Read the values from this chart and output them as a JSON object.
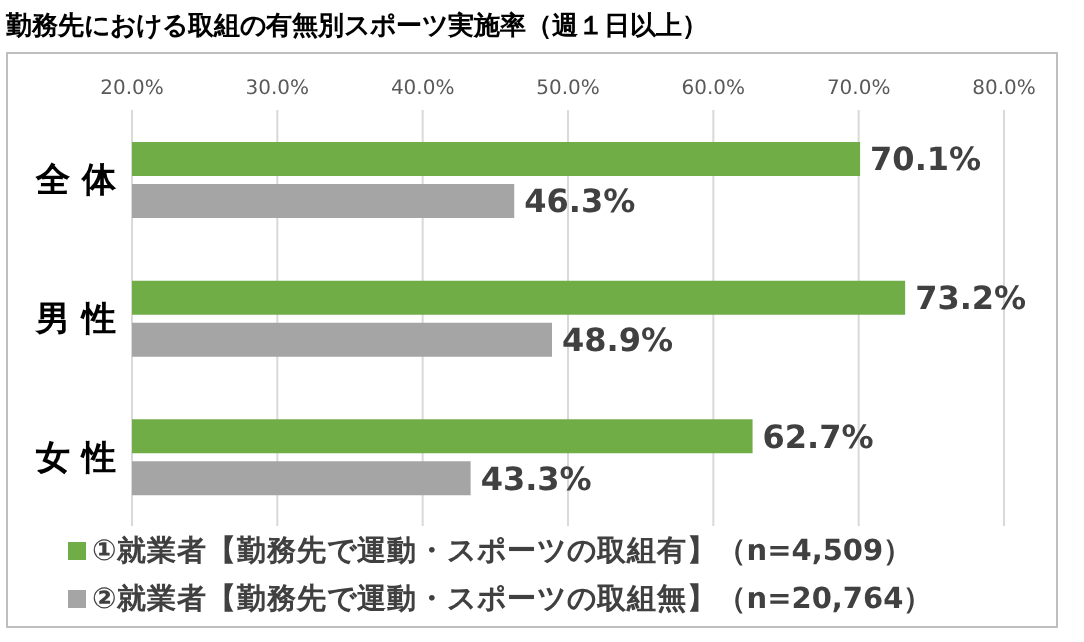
{
  "chart_data": {
    "type": "bar",
    "orientation": "horizontal",
    "title": "勤務先における取組の有無別スポーツ実施率（週１日以上）",
    "categories": [
      "全 体",
      "男 性",
      "女 性"
    ],
    "series": [
      {
        "name": "①就業者【勤務先で運動・スポーツの取組有】（n=4,509）",
        "color": "#70ad47",
        "values": [
          70.1,
          73.2,
          62.7
        ],
        "value_labels": [
          "70.1%",
          "73.2%",
          "62.7%"
        ]
      },
      {
        "name": "②就業者【勤務先で運動・スポーツの取組無】（n=20,764）",
        "color": "#a5a5a5",
        "values": [
          46.3,
          48.9,
          43.3
        ],
        "value_labels": [
          "46.3%",
          "48.9%",
          "43.3%"
        ]
      }
    ],
    "xlim": [
      20,
      80
    ],
    "xticks": [
      {
        "value": 20,
        "label": "20.0%"
      },
      {
        "value": 30,
        "label": "30.0%"
      },
      {
        "value": 40,
        "label": "40.0%"
      },
      {
        "value": 50,
        "label": "50.0%"
      },
      {
        "value": 60,
        "label": "60.0%"
      },
      {
        "value": 70,
        "label": "70.0%"
      },
      {
        "value": 80,
        "label": "80.0%"
      }
    ],
    "grid": "x",
    "legend": "bottom"
  }
}
